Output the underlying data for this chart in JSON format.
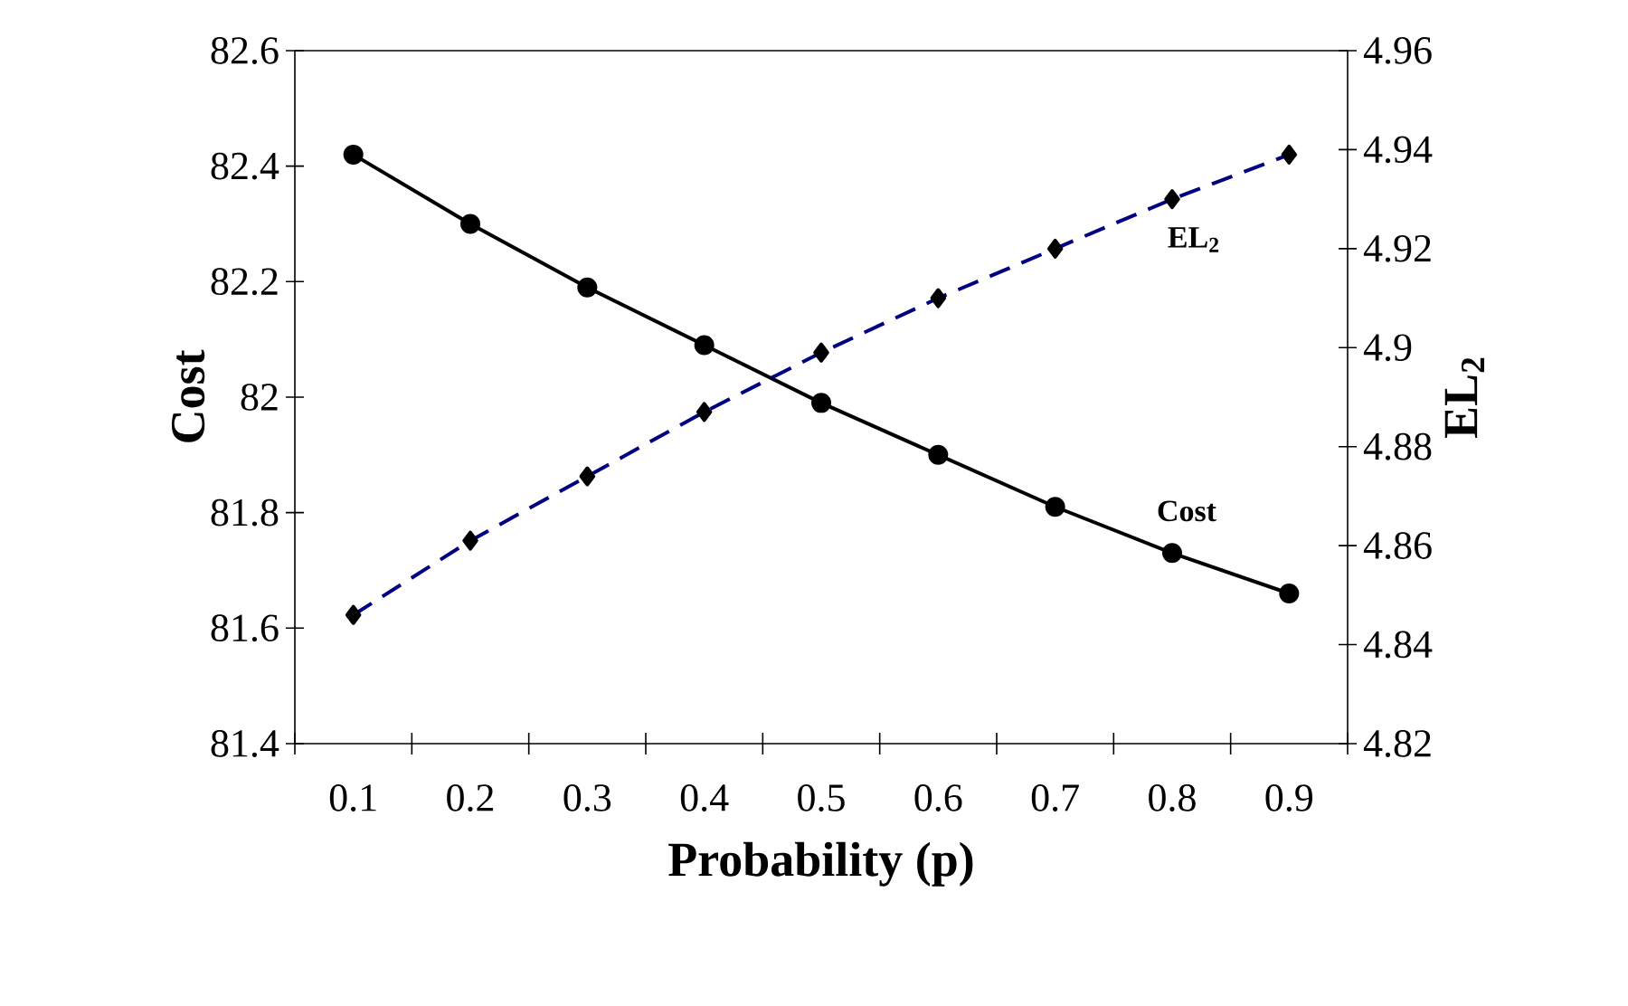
{
  "chart_data": {
    "type": "line",
    "xlabel": "Probability (p)",
    "ylabel": "Cost",
    "y2label": "EL$_{2}$",
    "categories": [
      "0.1",
      "0.2",
      "0.3",
      "0.4",
      "0.5",
      "0.6",
      "0.7",
      "0.8",
      "0.9"
    ],
    "ylim": [
      81.4,
      82.6
    ],
    "yticks": [
      81.4,
      81.6,
      81.8,
      82,
      82.2,
      82.4,
      82.6
    ],
    "y2lim": [
      4.82,
      4.96
    ],
    "y2ticks": [
      4.82,
      4.84,
      4.86,
      4.88,
      4.9,
      4.92,
      4.94,
      4.96
    ],
    "grid": false,
    "series": [
      {
        "name": "Cost",
        "color": "#000000",
        "marker": "circle",
        "line_style": "solid",
        "values": [
          82.42,
          82.3,
          82.19,
          82.09,
          81.99,
          81.9,
          81.81,
          81.73,
          81.66
        ]
      },
      {
        "name": "EL$_{2}$",
        "color": "#000080",
        "marker": "diamond",
        "line_style": "dashed",
        "axis": "y2",
        "values": [
          4.846,
          4.861,
          4.874,
          4.887,
          4.899,
          4.91,
          4.92,
          4.93,
          4.939
        ]
      }
    ]
  }
}
